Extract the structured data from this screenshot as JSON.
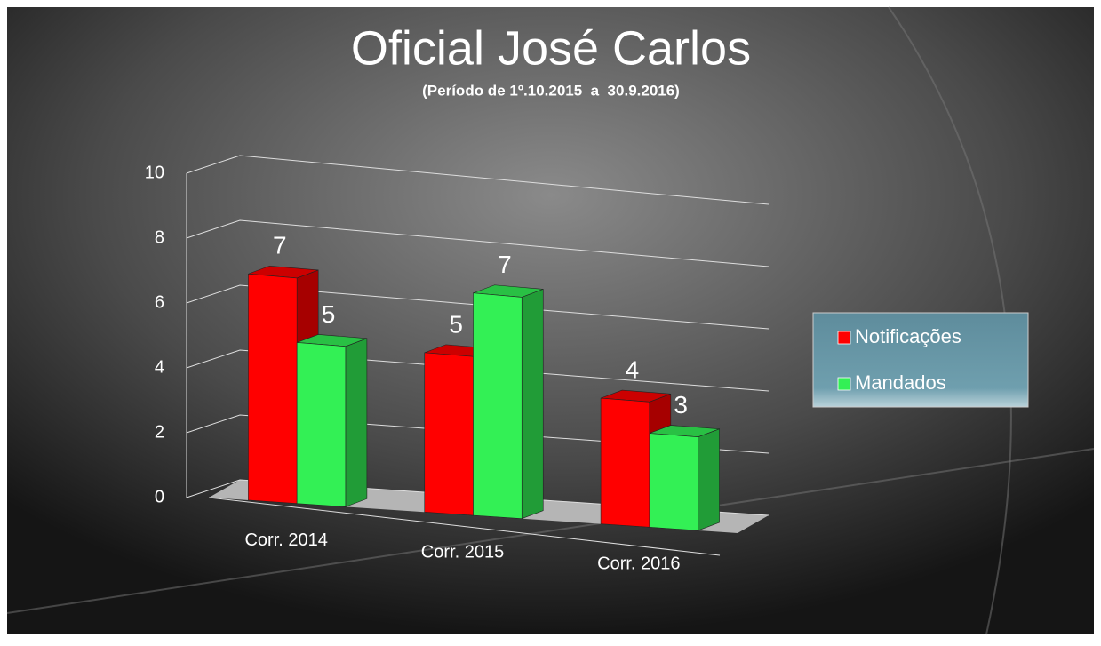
{
  "chart_data": {
    "type": "bar3d",
    "title": "Oficial José Carlos",
    "subtitle": "(Período de 1º.10.2015  a  30.9.2016)",
    "categories": [
      "Corr. 2014",
      "Corr. 2015",
      "Corr. 2016"
    ],
    "series": [
      {
        "name": "Notificações",
        "color": "#ff0000",
        "values": [
          7,
          5,
          4
        ]
      },
      {
        "name": "Mandados",
        "color": "#33f055",
        "values": [
          5,
          7,
          3
        ]
      }
    ],
    "ylim": [
      0,
      10
    ],
    "yticks": [
      0,
      2,
      4,
      6,
      8,
      10
    ],
    "grid": true,
    "legend": "right"
  }
}
